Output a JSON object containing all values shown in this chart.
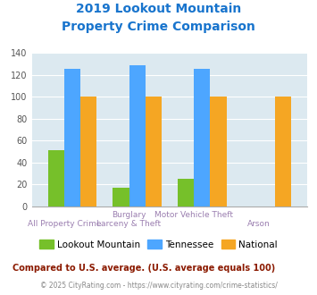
{
  "title_line1": "2019 Lookout Mountain",
  "title_line2": "Property Crime Comparison",
  "title_color": "#1874CD",
  "x_labels_top": [
    "",
    "Burglary",
    "Motor Vehicle Theft",
    ""
  ],
  "x_labels_bottom": [
    "All Property Crime",
    "Larceny & Theft",
    "",
    "Arson"
  ],
  "lookout_mountain": [
    51,
    17,
    25,
    0
  ],
  "tennessee": [
    126,
    129,
    126,
    0
  ],
  "national": [
    100,
    100,
    100,
    100
  ],
  "lookout_color": "#76C02A",
  "tennessee_color": "#4DA6FF",
  "national_color": "#F5A623",
  "ylim": [
    0,
    140
  ],
  "yticks": [
    0,
    20,
    40,
    60,
    80,
    100,
    120,
    140
  ],
  "background_color": "#DCE9F0",
  "legend_labels": [
    "Lookout Mountain",
    "Tennessee",
    "National"
  ],
  "footnote1": "Compared to U.S. average. (U.S. average equals 100)",
  "footnote2": "© 2025 CityRating.com - https://www.cityrating.com/crime-statistics/",
  "footnote1_color": "#8B1A00",
  "footnote2_color": "#888888",
  "xlabel_top_color": "#9B7FB0",
  "xlabel_bottom_color": "#9B7FB0"
}
